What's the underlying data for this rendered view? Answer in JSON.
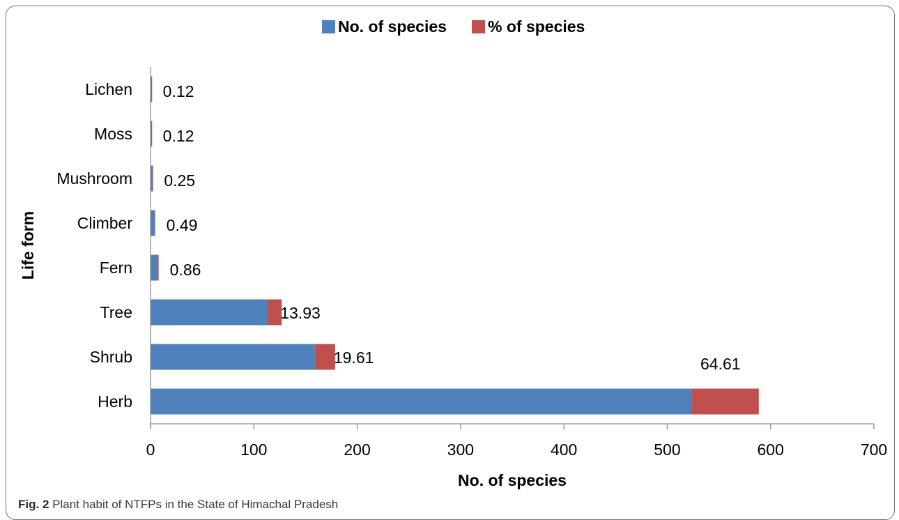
{
  "chart_data": {
    "type": "bar",
    "orientation": "horizontal",
    "stacked": true,
    "categories": [
      "Herb",
      "Shrub",
      "Tree",
      "Fern",
      "Climber",
      "Mushroom",
      "Moss",
      "Lichen"
    ],
    "series": [
      {
        "name": "No. of species",
        "color": "#4f81bd",
        "values": [
          524,
          159,
          113,
          7,
          4,
          2,
          1,
          1
        ]
      },
      {
        "name": "% of species",
        "color": "#c0504d",
        "values": [
          64.61,
          19.61,
          13.93,
          0.86,
          0.49,
          0.25,
          0.12,
          0.12
        ]
      }
    ],
    "data_labels": [
      "64.61",
      "19.61",
      "13.93",
      "0.86",
      "0.49",
      "0.25",
      "0.12",
      "0.12"
    ],
    "xlabel": "No. of species",
    "ylabel": "Life form",
    "xlim": [
      0,
      700
    ],
    "xticks": [
      0,
      100,
      200,
      300,
      400,
      500,
      600,
      700
    ],
    "grid": false,
    "legend_position": "top"
  },
  "caption": {
    "label": "Fig. 2",
    "text": "Plant habit of NTFPs in the State of Himachal Pradesh"
  }
}
